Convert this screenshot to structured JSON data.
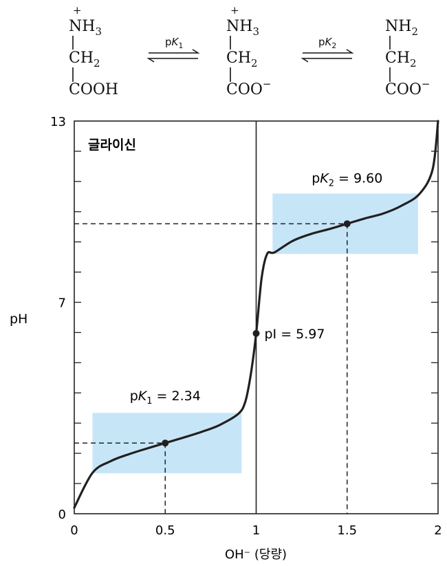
{
  "structures": [
    {
      "charge": "+",
      "top": "NH",
      "top_sub": "3",
      "mid": "CH",
      "mid_sub": "2",
      "bottom": "COOH",
      "bottom_sup": ""
    },
    {
      "charge": "+",
      "top": "NH",
      "top_sub": "3",
      "mid": "CH",
      "mid_sub": "2",
      "bottom": "COO",
      "bottom_sup": "−"
    },
    {
      "charge": "",
      "top": "NH",
      "top_sub": "2",
      "mid": "CH",
      "mid_sub": "2",
      "bottom": "COO",
      "bottom_sup": "−"
    }
  ],
  "equilibria": [
    {
      "label_p": "p",
      "label_k": "K",
      "label_sub": "1"
    },
    {
      "label_p": "p",
      "label_k": "K",
      "label_sub": "2"
    }
  ],
  "chart_data": {
    "type": "line",
    "title": "글라이신",
    "xlabel": "OH⁻ (당량)",
    "ylabel": "pH",
    "xlim": [
      0,
      2
    ],
    "ylim": [
      0,
      13
    ],
    "x_ticks": [
      "0",
      "0.5",
      "1",
      "1.5",
      "2"
    ],
    "y_ticks": [
      "0",
      "7",
      "13"
    ],
    "series": [
      {
        "x": [
          0.0,
          0.1,
          0.2,
          0.3,
          0.4,
          0.5,
          0.6,
          0.7,
          0.8,
          0.9,
          0.94,
          0.97,
          1.0,
          1.03,
          1.06,
          1.1,
          1.2,
          1.3,
          1.4,
          1.5,
          1.6,
          1.7,
          1.8,
          1.9,
          1.97,
          2.0
        ],
        "y": [
          0.2,
          1.35,
          1.74,
          1.97,
          2.16,
          2.34,
          2.52,
          2.71,
          2.94,
          3.3,
          3.7,
          4.6,
          5.97,
          7.8,
          8.6,
          8.65,
          9.03,
          9.26,
          9.42,
          9.6,
          9.78,
          9.94,
          10.2,
          10.6,
          11.4,
          13.0
        ]
      }
    ],
    "annotations": [
      {
        "id": "pk1",
        "x": 0.5,
        "y": 2.34,
        "p": "p",
        "k": "K",
        "sub": "1",
        "value": " = 2.34"
      },
      {
        "id": "pi",
        "x": 1.0,
        "y": 5.97,
        "text": "pI = 5.97"
      },
      {
        "id": "pk2",
        "x": 1.5,
        "y": 9.6,
        "p": "p",
        "k": "K",
        "sub": "2",
        "value": " = 9.60"
      }
    ],
    "buffer_regions": [
      {
        "x": [
          0.1,
          0.92
        ],
        "y": [
          1.34,
          3.34
        ]
      },
      {
        "x": [
          1.09,
          1.89
        ],
        "y": [
          8.6,
          10.6
        ]
      }
    ],
    "colors": {
      "buffer_fill": "#c6e6f8",
      "curve": "#231f20",
      "axis": "#231f20"
    }
  }
}
